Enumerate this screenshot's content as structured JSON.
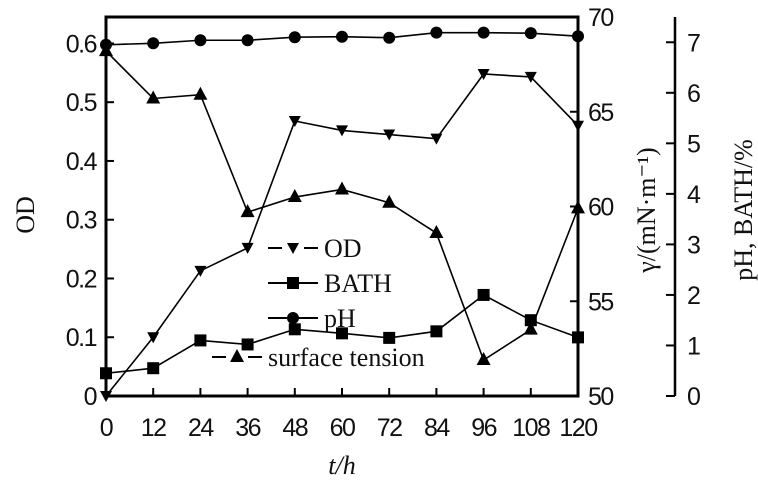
{
  "chart_data": {
    "type": "line",
    "title": "",
    "xlabel": "t/h",
    "ylabel_left": "OD",
    "ylabel_right1": "γ/(mN·m⁻¹)",
    "ylabel_right2": "pH, BATH/%",
    "x": [
      0,
      12,
      24,
      36,
      48,
      60,
      72,
      84,
      96,
      108,
      120
    ],
    "xlim": [
      0,
      120
    ],
    "x_ticks": [
      "0",
      "12",
      "24",
      "36",
      "48",
      "60",
      "72",
      "84",
      "96",
      "108",
      "120"
    ],
    "ylim_left": [
      0,
      0.645
    ],
    "y_ticks_left": [
      "0",
      "0.1",
      "0.2",
      "0.3",
      "0.4",
      "0.5",
      "0.6"
    ],
    "ylim_right1": [
      50,
      70
    ],
    "y_ticks_right1": [
      "50",
      "55",
      "60",
      "65",
      "70"
    ],
    "ylim_right2": [
      0,
      7.5
    ],
    "y_ticks_right2": [
      "0",
      "1",
      "2",
      "3",
      "4",
      "5",
      "6",
      "7"
    ],
    "grid": false,
    "legend_placement": "center",
    "series": [
      {
        "name": "OD",
        "axis": "left",
        "marker": "triangle-down",
        "dash": true,
        "values": [
          0,
          0.1,
          0.213,
          0.252,
          0.468,
          0.452,
          0.445,
          0.438,
          0.548,
          0.543,
          0.46
        ]
      },
      {
        "name": "BATH",
        "axis": "right2",
        "marker": "square",
        "dash": false,
        "values": [
          0.45,
          0.55,
          1.1,
          1.02,
          1.32,
          1.24,
          1.15,
          1.28,
          2.0,
          1.5,
          1.16
        ]
      },
      {
        "name": "pH",
        "axis": "right2",
        "marker": "circle",
        "dash": false,
        "values": [
          6.95,
          6.98,
          7.04,
          7.04,
          7.1,
          7.11,
          7.09,
          7.19,
          7.19,
          7.18,
          7.12
        ]
      },
      {
        "name": "surface tension",
        "axis": "right1",
        "marker": "triangle-up",
        "dash": true,
        "values": [
          68.2,
          65.7,
          65.9,
          59.7,
          60.5,
          60.9,
          60.2,
          58.6,
          51.9,
          53.5,
          59.9
        ]
      }
    ]
  }
}
